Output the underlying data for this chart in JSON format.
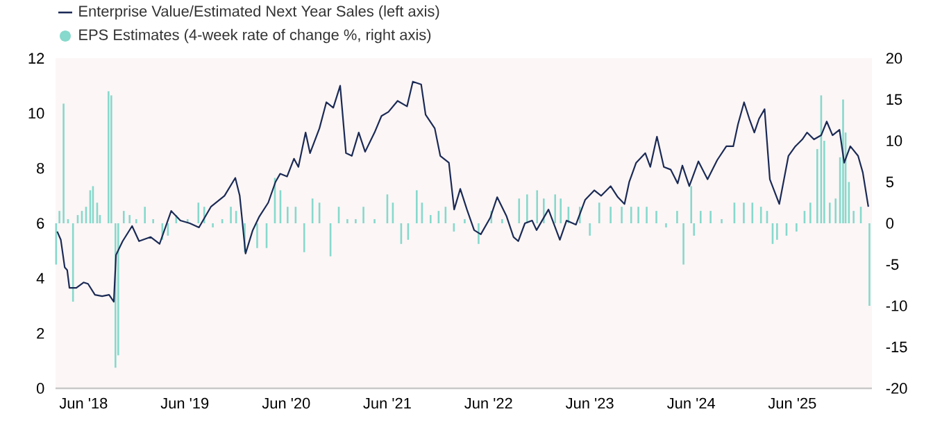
{
  "chart_data": {
    "type": "line",
    "xlim": [
      "2018-02-20",
      "2026-03-15"
    ],
    "xticks": [
      {
        "value": "2018-06-01",
        "label": "Jun '18"
      },
      {
        "value": "2019-06-01",
        "label": "Jun '19"
      },
      {
        "value": "2020-06-01",
        "label": "Jun '20"
      },
      {
        "value": "2021-06-01",
        "label": "Jun '21"
      },
      {
        "value": "2022-06-01",
        "label": "Jun '22"
      },
      {
        "value": "2023-06-01",
        "label": "Jun '23"
      },
      {
        "value": "2024-06-01",
        "label": "Jun '24"
      },
      {
        "value": "2025-06-01",
        "label": "Jun '25"
      }
    ],
    "ylim": [
      0,
      12
    ],
    "yticks": [
      0,
      2,
      4,
      6,
      8,
      10,
      12
    ],
    "y2lim": [
      -20,
      20
    ],
    "y2ticks": [
      -20,
      -15,
      -10,
      -5,
      0,
      5,
      10,
      15,
      20
    ],
    "legend": "top left",
    "series": [
      {
        "name": "Enterprise Value/Estimated Next Year Sales (left axis)",
        "color": "#1b2a55",
        "x": [
          "2018-02-26",
          "2018-03-11",
          "2018-03-25",
          "2018-04-03",
          "2018-04-11",
          "2018-05-06",
          "2018-06-01",
          "2018-06-17",
          "2018-07-12",
          "2018-08-07",
          "2018-09-01",
          "2018-09-18",
          "2018-09-26",
          "2018-10-20",
          "2018-11-23",
          "2018-12-18",
          "2019-01-29",
          "2019-03-02",
          "2019-04-13",
          "2019-05-16",
          "2019-06-19",
          "2019-07-22",
          "2019-09-03",
          "2019-10-22",
          "2019-11-30",
          "2019-12-16",
          "2020-01-06",
          "2020-02-01",
          "2020-02-25",
          "2020-03-28",
          "2020-04-23",
          "2020-05-10",
          "2020-06-04",
          "2020-06-29",
          "2020-07-15",
          "2020-08-10",
          "2020-08-26",
          "2020-09-29",
          "2020-10-24",
          "2020-11-18",
          "2020-12-13",
          "2021-01-03",
          "2021-01-24",
          "2021-02-18",
          "2021-03-13",
          "2021-04-16",
          "2021-05-11",
          "2021-06-05",
          "2021-07-08",
          "2021-08-11",
          "2021-09-01",
          "2021-10-01",
          "2021-10-17",
          "2021-11-19",
          "2021-12-09",
          "2022-01-09",
          "2022-01-28",
          "2022-02-19",
          "2022-03-15",
          "2022-04-10",
          "2022-05-04",
          "2022-06-07",
          "2022-07-02",
          "2022-08-05",
          "2022-08-30",
          "2022-09-16",
          "2022-10-10",
          "2022-11-05",
          "2022-11-21",
          "2023-01-03",
          "2023-02-13",
          "2023-03-09",
          "2023-04-12",
          "2023-05-15",
          "2023-06-17",
          "2023-07-12",
          "2023-08-15",
          "2023-09-10",
          "2023-10-04",
          "2023-10-21",
          "2023-11-15",
          "2023-12-18",
          "2024-01-05",
          "2024-01-29",
          "2024-02-23",
          "2024-03-19",
          "2024-04-13",
          "2024-04-30",
          "2024-05-25",
          "2024-06-27",
          "2024-07-30",
          "2024-09-03",
          "2024-10-06",
          "2024-10-31",
          "2024-11-17",
          "2024-12-09",
          "2024-12-28",
          "2025-01-15",
          "2025-02-01",
          "2025-02-21",
          "2025-03-12",
          "2025-04-15",
          "2025-05-18",
          "2025-06-12",
          "2025-07-07",
          "2025-07-24",
          "2025-08-18",
          "2025-09-13",
          "2025-10-03",
          "2025-10-24",
          "2025-11-18",
          "2025-12-05",
          "2025-12-27",
          "2026-01-24",
          "2026-02-10",
          "2026-03-02"
        ],
        "values": [
          5.7,
          5.4,
          4.4,
          4.3,
          3.65,
          3.65,
          3.85,
          3.8,
          3.4,
          3.35,
          3.4,
          3.15,
          4.85,
          5.35,
          5.9,
          5.35,
          5.5,
          5.25,
          6.45,
          6.1,
          6.0,
          5.85,
          6.6,
          7.0,
          7.65,
          7.0,
          4.9,
          5.75,
          6.25,
          6.75,
          7.5,
          7.8,
          7.7,
          8.35,
          8.05,
          9.3,
          8.55,
          9.45,
          10.4,
          10.2,
          11.0,
          8.55,
          8.45,
          9.3,
          8.6,
          9.3,
          9.9,
          10.05,
          10.45,
          10.25,
          11.15,
          11.05,
          9.95,
          9.45,
          8.45,
          8.2,
          6.5,
          7.25,
          6.5,
          5.75,
          5.6,
          6.2,
          6.95,
          6.25,
          5.5,
          5.35,
          6.0,
          6.1,
          5.75,
          6.5,
          5.4,
          6.1,
          5.95,
          6.85,
          7.2,
          7.0,
          7.35,
          6.95,
          6.7,
          7.5,
          8.2,
          8.55,
          8.05,
          9.15,
          8.05,
          7.95,
          7.45,
          8.1,
          7.35,
          8.25,
          7.6,
          8.3,
          8.8,
          8.8,
          9.6,
          10.4,
          9.8,
          9.3,
          9.8,
          10.15,
          7.6,
          6.7,
          8.45,
          8.8,
          9.05,
          9.3,
          9.05,
          9.2,
          9.7,
          9.2,
          9.4,
          8.2,
          8.8,
          8.45,
          7.85,
          6.6
        ]
      },
      {
        "name": "EPS Estimates (4-week rate of change %, right axis)",
        "type": "bar",
        "axis": "y2",
        "color": "#86d9cc",
        "x": [
          "2018-02-22",
          "2018-03-06",
          "2018-03-21",
          "2018-04-06",
          "2018-04-24",
          "2018-05-11",
          "2018-05-26",
          "2018-06-10",
          "2018-06-25",
          "2018-07-05",
          "2018-07-20",
          "2018-07-30",
          "2018-08-30",
          "2018-09-09",
          "2018-09-24",
          "2018-10-04",
          "2018-10-24",
          "2018-11-14",
          "2018-12-08",
          "2019-01-08",
          "2019-02-07",
          "2019-03-12",
          "2019-04-01",
          "2019-05-01",
          "2019-06-11",
          "2019-07-20",
          "2019-08-10",
          "2019-09-10",
          "2019-10-14",
          "2019-11-14",
          "2019-12-03",
          "2020-01-03",
          "2020-02-17",
          "2020-03-22",
          "2020-04-21",
          "2020-05-11",
          "2020-06-06",
          "2020-07-05",
          "2020-08-05",
          "2020-09-04",
          "2020-09-29",
          "2020-11-08",
          "2020-12-08",
          "2021-01-08",
          "2021-02-07",
          "2021-03-07",
          "2021-04-16",
          "2021-06-01",
          "2021-06-21",
          "2021-07-21",
          "2021-08-15",
          "2021-09-15",
          "2021-10-04",
          "2021-11-04",
          "2021-12-03",
          "2021-12-28",
          "2022-01-27",
          "2022-03-07",
          "2022-04-26",
          "2022-06-11",
          "2022-07-20",
          "2022-09-19",
          "2022-10-18",
          "2022-11-23",
          "2022-12-17",
          "2023-01-27",
          "2023-02-16",
          "2023-03-16",
          "2023-04-26",
          "2023-06-01",
          "2023-07-05",
          "2023-08-15",
          "2023-09-24",
          "2023-10-28",
          "2023-11-23",
          "2023-12-23",
          "2024-01-27",
          "2024-03-02",
          "2024-04-11",
          "2024-05-04",
          "2024-06-01",
          "2024-06-11",
          "2024-07-05",
          "2024-08-10",
          "2024-09-19",
          "2024-11-04",
          "2024-12-08",
          "2025-01-08",
          "2025-02-08",
          "2025-03-02",
          "2025-03-22",
          "2025-04-07",
          "2025-05-11",
          "2025-06-16",
          "2025-07-15",
          "2025-08-05",
          "2025-08-30",
          "2025-09-13",
          "2025-09-24",
          "2025-10-14",
          "2025-11-04",
          "2025-11-20",
          "2025-12-01",
          "2025-12-10",
          "2025-12-22",
          "2026-01-08",
          "2026-02-03",
          "2026-03-06"
        ],
        "values": [
          -5,
          1.5,
          14.5,
          0.5,
          -9.5,
          1,
          1.5,
          2,
          4,
          4.5,
          2.5,
          1,
          16,
          15.5,
          -17.5,
          -16,
          1.5,
          1,
          0.5,
          2,
          0.5,
          -2,
          -1.5,
          1,
          0.5,
          2.5,
          2,
          -0.5,
          0.5,
          2,
          1.5,
          -3.5,
          -3,
          -3,
          5.5,
          4,
          2,
          2,
          -3.5,
          3,
          2.5,
          -4,
          2,
          0.5,
          0.5,
          2,
          0.5,
          3.5,
          2.5,
          -2.5,
          -2,
          4,
          2.5,
          1,
          1.5,
          2,
          -1,
          0.5,
          -2.5,
          1.5,
          0.5,
          3,
          3.5,
          4,
          3,
          3.5,
          3,
          2,
          2,
          -1.5,
          2.5,
          2,
          2,
          2,
          2,
          2,
          1.5,
          -0.5,
          1.5,
          -5,
          4.5,
          -1.5,
          1.5,
          1.5,
          0.5,
          2.5,
          2.5,
          2.5,
          2,
          1.5,
          -2.5,
          -2,
          -1.5,
          -1,
          1.5,
          2.5,
          9,
          15.5,
          10,
          2.5,
          3,
          8,
          15,
          11,
          5,
          1.5,
          2,
          -10
        ]
      }
    ]
  }
}
